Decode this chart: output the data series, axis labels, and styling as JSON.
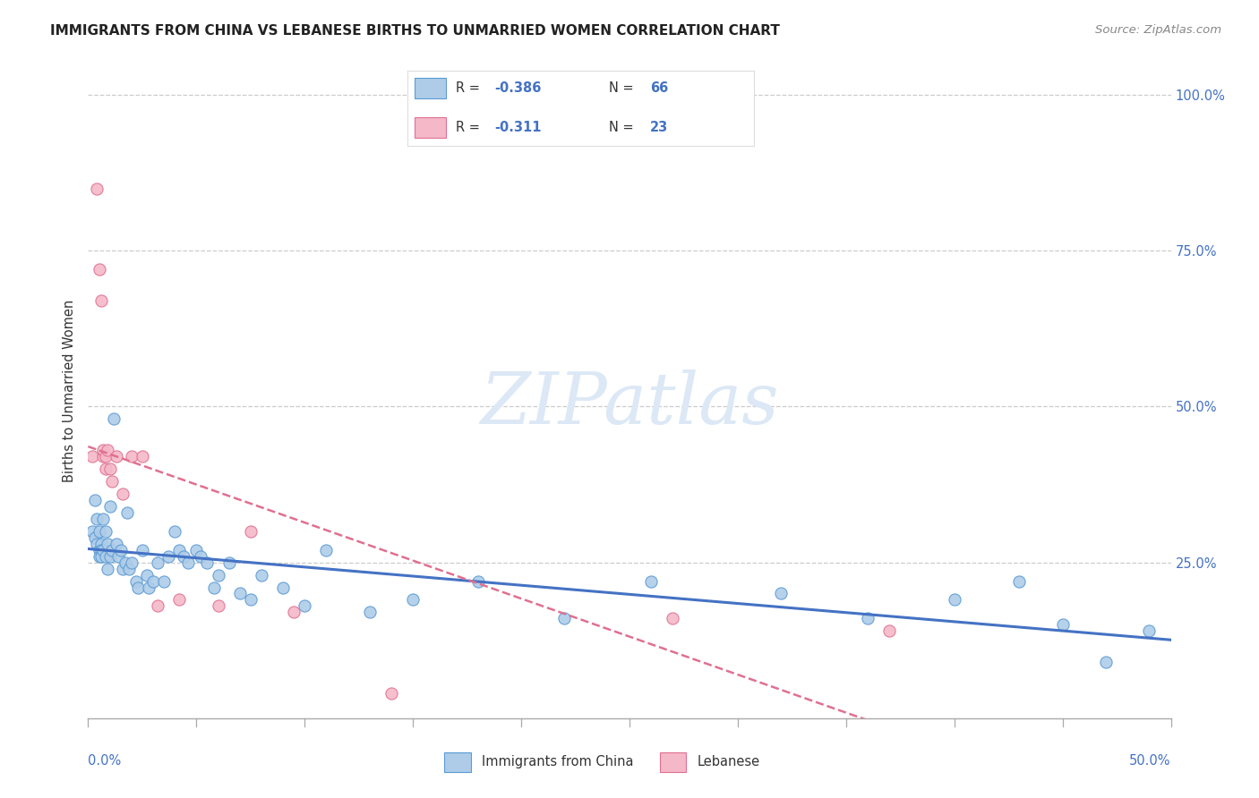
{
  "title": "IMMIGRANTS FROM CHINA VS LEBANESE BIRTHS TO UNMARRIED WOMEN CORRELATION CHART",
  "source": "Source: ZipAtlas.com",
  "ylabel": "Births to Unmarried Women",
  "xmin": 0.0,
  "xmax": 0.5,
  "ymin": 0.0,
  "ymax": 1.05,
  "legend_china_R": "-0.386",
  "legend_china_N": "66",
  "legend_lebanese_R": "-0.311",
  "legend_lebanese_N": "23",
  "color_china_fill": "#aecce8",
  "color_china_edge": "#5b9bd5",
  "color_china_line": "#4472c4",
  "color_lebanese_fill": "#f4b8c8",
  "color_lebanese_edge": "#e07090",
  "color_lebanese_line": "#e07090",
  "watermark_color": "#dce8f5",
  "china_x": [
    0.002,
    0.003,
    0.003,
    0.004,
    0.004,
    0.005,
    0.005,
    0.005,
    0.006,
    0.006,
    0.006,
    0.007,
    0.007,
    0.008,
    0.008,
    0.009,
    0.009,
    0.01,
    0.01,
    0.011,
    0.012,
    0.013,
    0.014,
    0.015,
    0.016,
    0.017,
    0.018,
    0.019,
    0.02,
    0.022,
    0.023,
    0.025,
    0.027,
    0.028,
    0.03,
    0.032,
    0.035,
    0.037,
    0.04,
    0.042,
    0.044,
    0.046,
    0.05,
    0.052,
    0.055,
    0.058,
    0.06,
    0.065,
    0.07,
    0.075,
    0.08,
    0.09,
    0.1,
    0.11,
    0.13,
    0.15,
    0.18,
    0.22,
    0.26,
    0.32,
    0.36,
    0.4,
    0.43,
    0.45,
    0.47,
    0.49
  ],
  "china_y": [
    0.3,
    0.29,
    0.35,
    0.32,
    0.28,
    0.3,
    0.27,
    0.26,
    0.28,
    0.27,
    0.26,
    0.32,
    0.27,
    0.3,
    0.26,
    0.28,
    0.24,
    0.34,
    0.26,
    0.27,
    0.48,
    0.28,
    0.26,
    0.27,
    0.24,
    0.25,
    0.33,
    0.24,
    0.25,
    0.22,
    0.21,
    0.27,
    0.23,
    0.21,
    0.22,
    0.25,
    0.22,
    0.26,
    0.3,
    0.27,
    0.26,
    0.25,
    0.27,
    0.26,
    0.25,
    0.21,
    0.23,
    0.25,
    0.2,
    0.19,
    0.23,
    0.21,
    0.18,
    0.27,
    0.17,
    0.19,
    0.22,
    0.16,
    0.22,
    0.2,
    0.16,
    0.19,
    0.22,
    0.15,
    0.09,
    0.14
  ],
  "lebanese_x": [
    0.002,
    0.004,
    0.005,
    0.006,
    0.007,
    0.007,
    0.008,
    0.008,
    0.009,
    0.01,
    0.011,
    0.013,
    0.016,
    0.02,
    0.025,
    0.032,
    0.042,
    0.06,
    0.075,
    0.095,
    0.14,
    0.27,
    0.37
  ],
  "lebanese_y": [
    0.42,
    0.85,
    0.72,
    0.67,
    0.42,
    0.43,
    0.4,
    0.42,
    0.43,
    0.4,
    0.38,
    0.42,
    0.36,
    0.42,
    0.42,
    0.18,
    0.19,
    0.18,
    0.3,
    0.17,
    0.04,
    0.16,
    0.14
  ]
}
